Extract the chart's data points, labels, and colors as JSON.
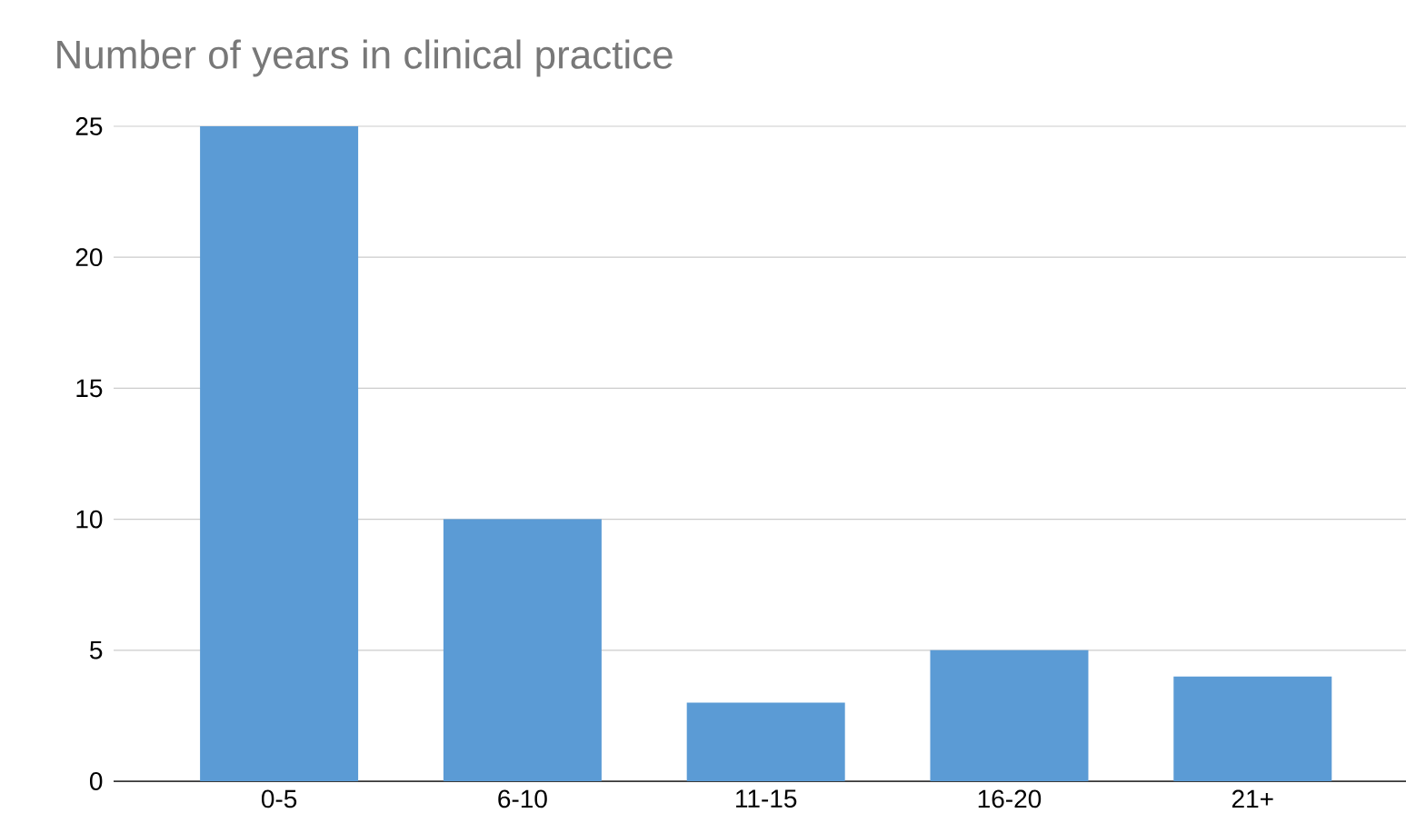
{
  "chart_data": {
    "type": "bar",
    "title": "Number of years in clinical practice",
    "categories": [
      "0-5",
      "6-10",
      "11-15",
      "16-20",
      "21+"
    ],
    "values": [
      25,
      10,
      3,
      5,
      4
    ],
    "color": "#5b9bd5",
    "ylim": [
      0,
      25
    ],
    "yticks": [
      0,
      5,
      10,
      15,
      20,
      25
    ],
    "grid": "y"
  }
}
